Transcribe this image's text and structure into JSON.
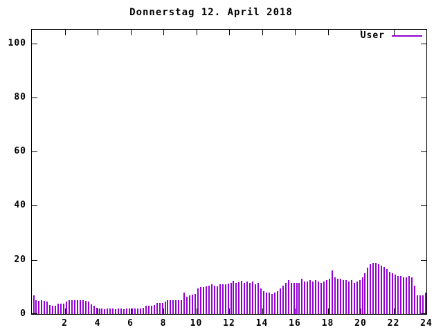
{
  "chart": {
    "title": "Donnerstag 12. April 2018",
    "legend": {
      "label": "User",
      "color": "#9400d3"
    },
    "axis_color": "#000000",
    "background": "#ffffff"
  },
  "chart_data": {
    "type": "bar",
    "title": "Donnerstag 12. April 2018",
    "xlabel": "",
    "ylabel": "",
    "xlim": [
      0,
      24
    ],
    "ylim": [
      0,
      105
    ],
    "x_ticks": [
      2,
      4,
      6,
      8,
      10,
      12,
      14,
      16,
      18,
      20,
      22,
      24
    ],
    "y_ticks": [
      0,
      20,
      40,
      60,
      80,
      100
    ],
    "grid": false,
    "legend_position": "top-right",
    "series": [
      {
        "name": "User",
        "color": "#9400d3",
        "interval_minutes": 10,
        "values": [
          7,
          5,
          4.8,
          5,
          4.8,
          4.6,
          3.2,
          3,
          3,
          3.8,
          3.8,
          3.8,
          4.7,
          5,
          5,
          5,
          5.2,
          5,
          5,
          4.8,
          4.5,
          3.5,
          3,
          2.2,
          2,
          2,
          1.8,
          2,
          2,
          2,
          1.8,
          2,
          2,
          1.8,
          2,
          2,
          2,
          2,
          2,
          2,
          2.2,
          3,
          3,
          3,
          3.2,
          4,
          4,
          4.2,
          4.5,
          5,
          5,
          5,
          5,
          5,
          5.2,
          8,
          6.5,
          7,
          7.2,
          7.5,
          9.5,
          10,
          10,
          10.2,
          10.5,
          11,
          10.5,
          10.2,
          11,
          11,
          11,
          11.2,
          11.5,
          12.3,
          11.5,
          11.8,
          12.3,
          11.5,
          12,
          11.5,
          12,
          11,
          11.5,
          9.5,
          8.5,
          8,
          8,
          7.5,
          8,
          8.5,
          9.5,
          10.5,
          11.5,
          12.5,
          11.5,
          11.5,
          11.5,
          11.5,
          13,
          12,
          12,
          12.5,
          12,
          12.5,
          12,
          11.5,
          12,
          12.5,
          13,
          16,
          13.5,
          13,
          13,
          12.5,
          12.5,
          12,
          12.5,
          11.5,
          12,
          12.5,
          13.5,
          15,
          17,
          18.5,
          19,
          19,
          18.5,
          18,
          17.5,
          16.5,
          15.5,
          15,
          14.5,
          14,
          14,
          13.5,
          13.5,
          14,
          13.5,
          10.5,
          7,
          7,
          7,
          8
        ]
      }
    ]
  }
}
